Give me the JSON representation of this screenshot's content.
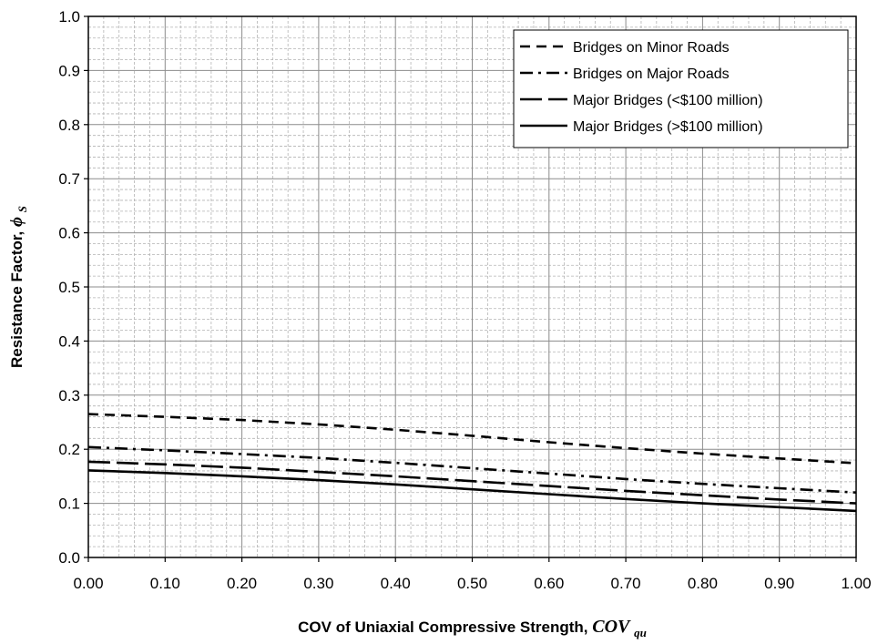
{
  "chart_data": {
    "type": "line",
    "title": "",
    "xlabel": "COV of Uniaxial Compressive Strength,",
    "xlabel_symbol": "COV",
    "xlabel_subscript": "qu",
    "ylabel": "Resistance Factor,",
    "ylabel_symbol": "ϕ",
    "ylabel_subscript": "S",
    "xlim": [
      0,
      1
    ],
    "ylim": [
      0,
      1
    ],
    "x_ticks": [
      "0.00",
      "0.10",
      "0.20",
      "0.30",
      "0.40",
      "0.50",
      "0.60",
      "0.70",
      "0.80",
      "0.90",
      "1.00"
    ],
    "y_ticks": [
      "0.0",
      "0.1",
      "0.2",
      "0.3",
      "0.4",
      "0.5",
      "0.6",
      "0.7",
      "0.8",
      "0.9",
      "1.0"
    ],
    "grid": true,
    "legend_position": "top-right",
    "x": [
      0,
      0.1,
      0.2,
      0.3,
      0.4,
      0.5,
      0.6,
      0.7,
      0.8,
      0.9,
      1.0
    ],
    "series": [
      {
        "name": "Bridges on Minor Roads",
        "dash": "dashed",
        "values": [
          0.265,
          0.26,
          0.254,
          0.246,
          0.236,
          0.225,
          0.213,
          0.202,
          0.192,
          0.183,
          0.174
        ]
      },
      {
        "name": "Bridges on Major Roads",
        "dash": "dash-dot",
        "values": [
          0.204,
          0.198,
          0.191,
          0.184,
          0.175,
          0.165,
          0.155,
          0.145,
          0.136,
          0.128,
          0.12
        ]
      },
      {
        "name": "Major Bridges (<$100 million)",
        "dash": "long-dash",
        "values": [
          0.177,
          0.172,
          0.166,
          0.158,
          0.15,
          0.141,
          0.132,
          0.123,
          0.115,
          0.107,
          0.1
        ]
      },
      {
        "name": "Major Bridges (>$100 million)",
        "dash": "solid",
        "values": [
          0.161,
          0.156,
          0.15,
          0.143,
          0.135,
          0.126,
          0.117,
          0.108,
          0.1,
          0.093,
          0.086
        ]
      }
    ]
  }
}
